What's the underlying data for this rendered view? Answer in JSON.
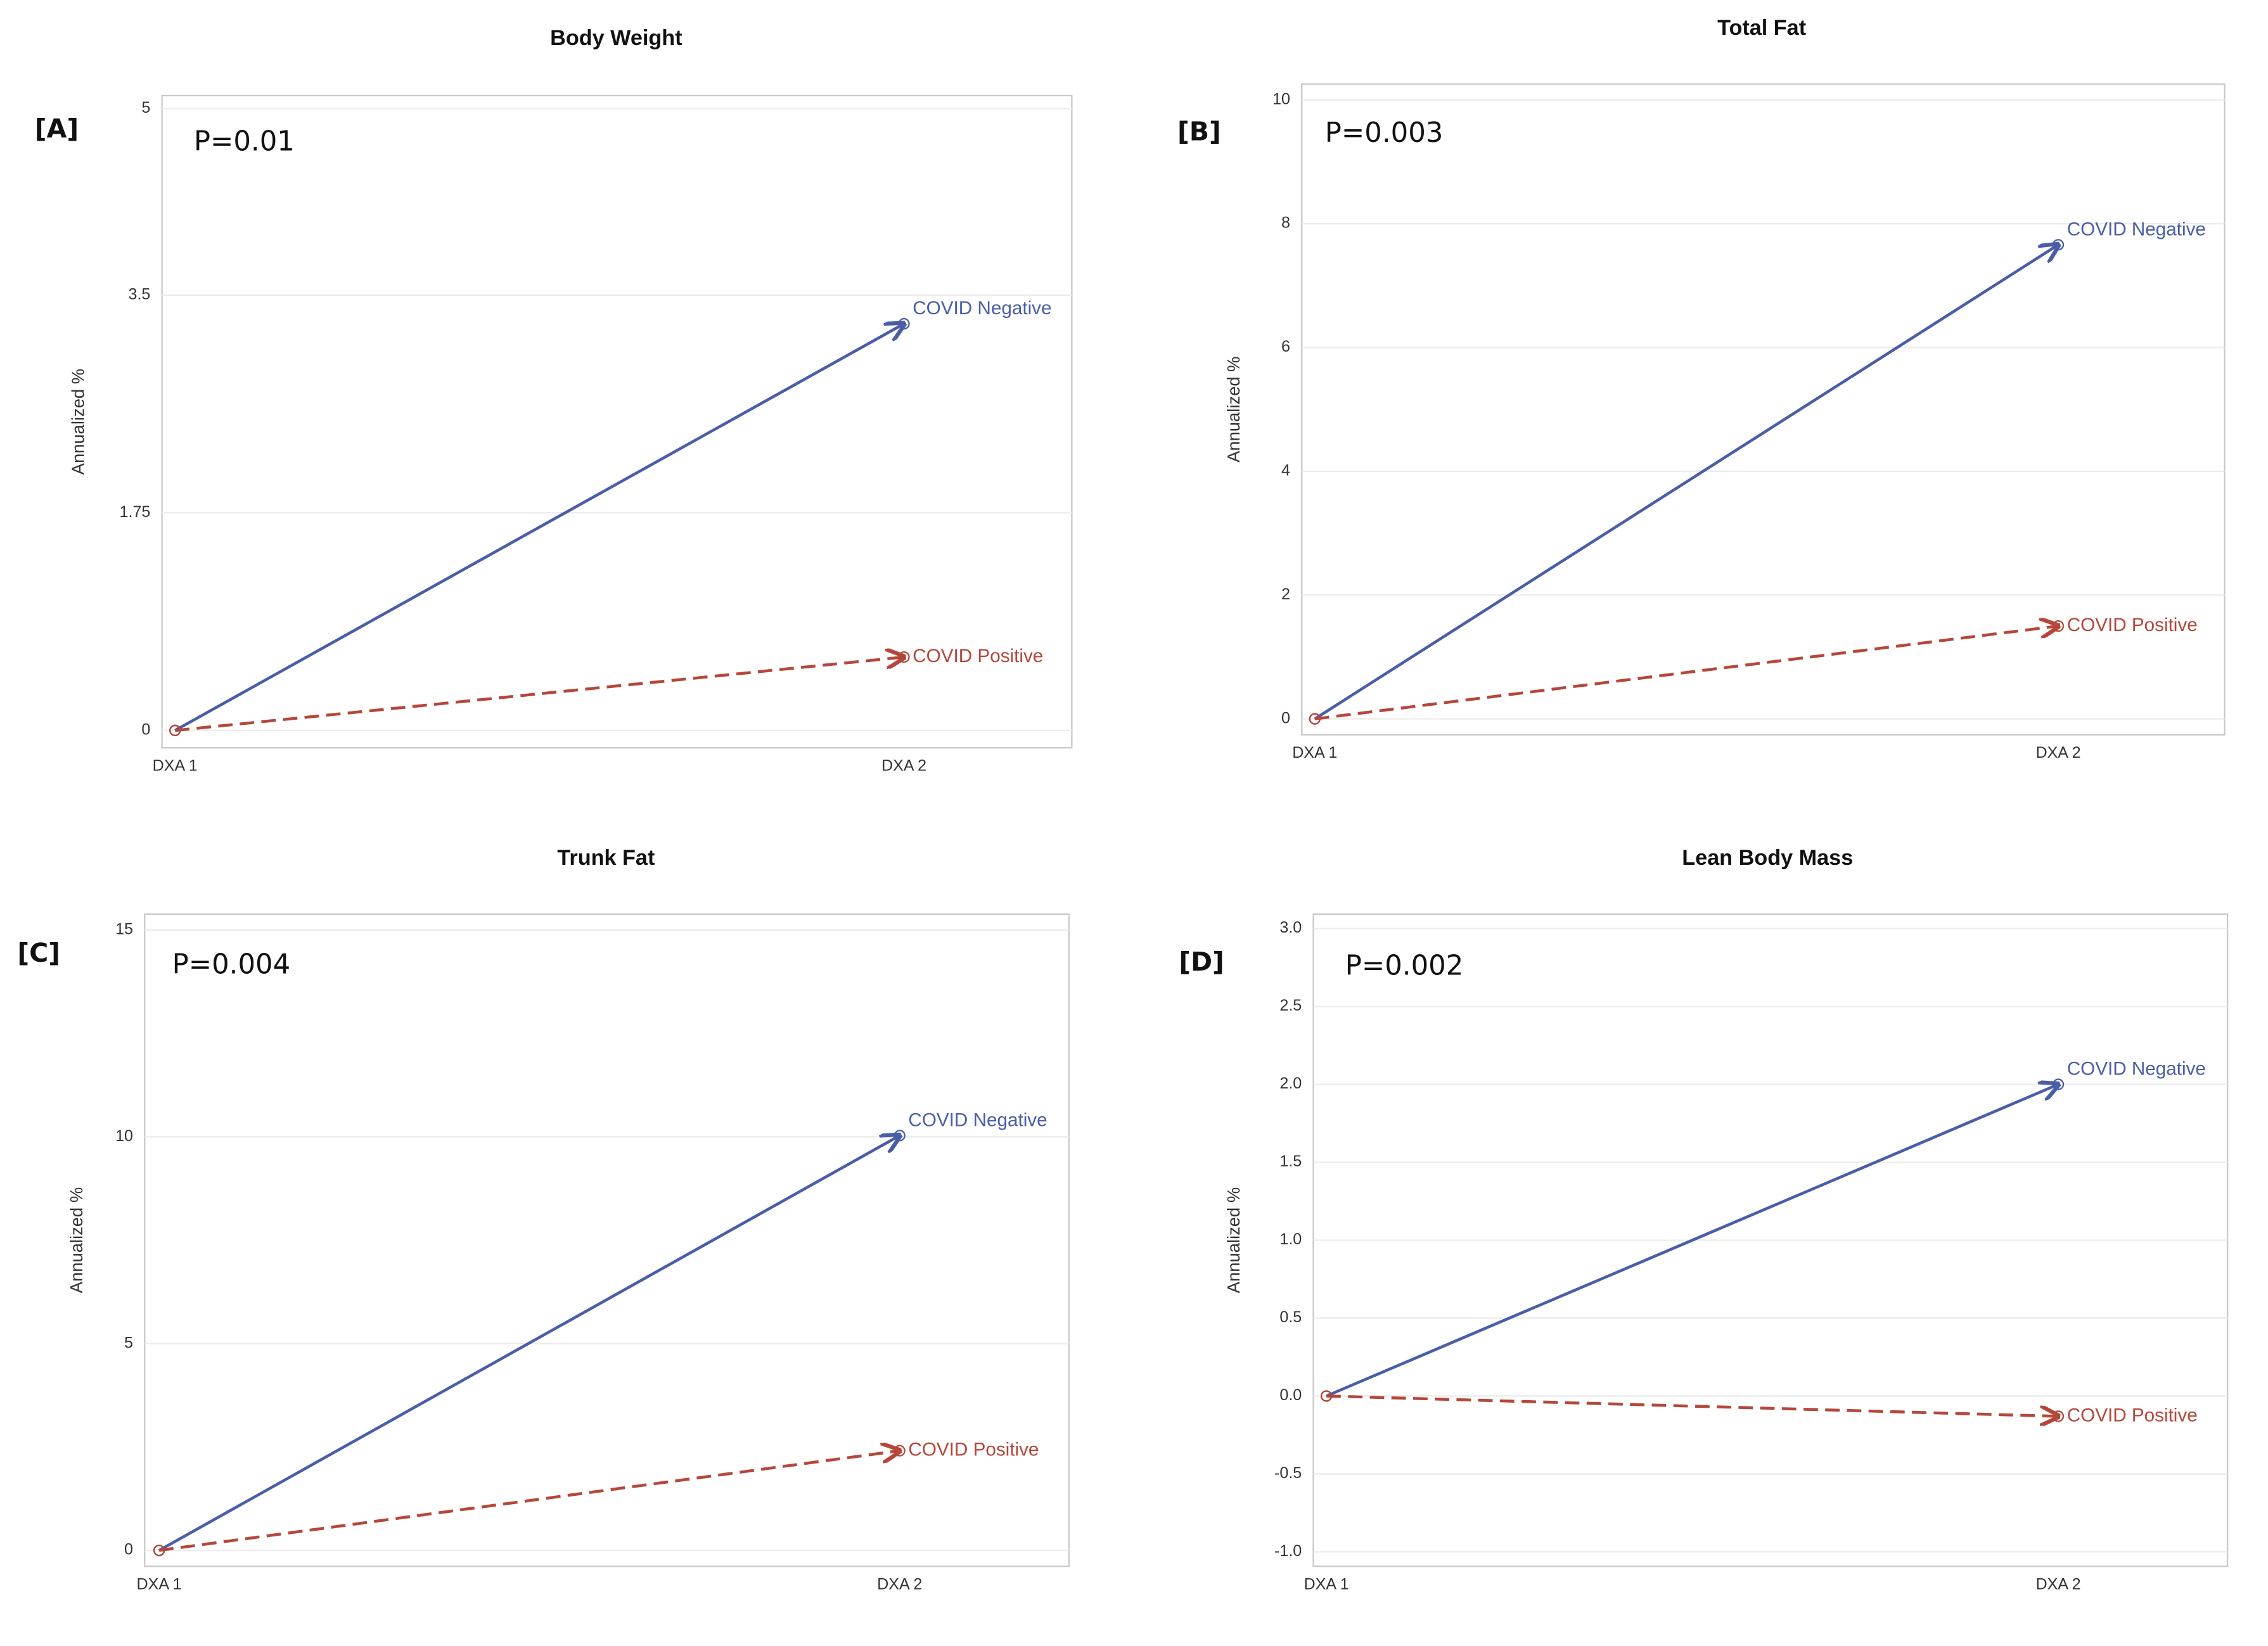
{
  "chart_data": [
    {
      "type": "line",
      "panel_label": "[A]",
      "title": "Body Weight",
      "annotation": "P=0.01",
      "y_label": "Annualized %",
      "categories": [
        "DXA 1",
        "DXA 2"
      ],
      "series": [
        {
          "name": "COVID Negative",
          "color": "#4a5ea8",
          "values": [
            0,
            3.27
          ]
        },
        {
          "name": "COVID Positive",
          "color": "#b5473a",
          "values": [
            0,
            0.59
          ]
        }
      ],
      "ylim": [
        0,
        5
      ],
      "yticks": [
        0,
        1.75,
        3.5,
        5
      ],
      "grid": true
    },
    {
      "type": "line",
      "panel_label": "[B]",
      "title": "Total Fat",
      "annotation": "P=0.003",
      "y_label": "Annualized %",
      "categories": [
        "DXA 1",
        "DXA 2"
      ],
      "series": [
        {
          "name": "COVID Negative",
          "color": "#4a5ea8",
          "values": [
            0,
            7.66
          ]
        },
        {
          "name": "COVID Positive",
          "color": "#b5473a",
          "values": [
            0,
            1.5
          ]
        }
      ],
      "ylim": [
        0,
        10
      ],
      "yticks": [
        0,
        2,
        4,
        6,
        8,
        10
      ],
      "grid": true
    },
    {
      "type": "line",
      "panel_label": "[C]",
      "title": "Trunk Fat",
      "annotation": "P=0.004",
      "y_label": "Annualized %",
      "categories": [
        "DXA 1",
        "DXA 2"
      ],
      "series": [
        {
          "name": "COVID Negative",
          "color": "#4a5ea8",
          "values": [
            0,
            10.03
          ]
        },
        {
          "name": "COVID Positive",
          "color": "#b5473a",
          "values": [
            0,
            2.41
          ]
        }
      ],
      "ylim": [
        0,
        15
      ],
      "yticks": [
        0,
        5,
        10,
        15
      ],
      "grid": true
    },
    {
      "type": "line",
      "panel_label": "[D]",
      "title": "Lean Body Mass",
      "annotation": "P=0.002",
      "y_label": "Annualized %",
      "categories": [
        "DXA 1",
        "DXA 2"
      ],
      "series": [
        {
          "name": "COVID Negative",
          "color": "#4a5ea8",
          "values": [
            0,
            2.0
          ]
        },
        {
          "name": "COVID Positive",
          "color": "#b5473a",
          "values": [
            0,
            -0.13
          ]
        }
      ],
      "ylim": [
        -1,
        3
      ],
      "yticks": [
        {
          "value": -1,
          "label": "-1.0"
        },
        -0.5,
        {
          "value": 0,
          "label": "0.0"
        },
        0.5,
        {
          "value": 1,
          "label": "1.0"
        },
        1.5,
        {
          "value": 2,
          "label": "2.0"
        },
        2.5,
        {
          "value": 3,
          "label": "3.0"
        }
      ],
      "grid": true
    }
  ]
}
